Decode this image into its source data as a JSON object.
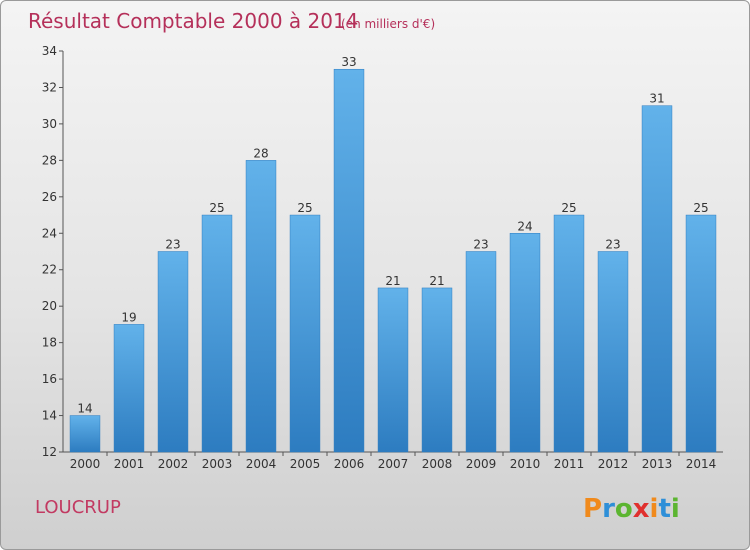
{
  "chart_data": {
    "type": "bar",
    "title": "Résultat Comptable 2000 à 2014",
    "subtitle": "(en milliers d'€)",
    "categories": [
      "2000",
      "2001",
      "2002",
      "2003",
      "2004",
      "2005",
      "2006",
      "2007",
      "2008",
      "2009",
      "2010",
      "2011",
      "2012",
      "2013",
      "2014"
    ],
    "values": [
      14,
      19,
      23,
      25,
      28,
      25,
      33,
      21,
      21,
      23,
      24,
      25,
      23,
      31,
      25
    ],
    "ylim": [
      12,
      34
    ],
    "yticks": [
      12,
      14,
      16,
      18,
      20,
      22,
      24,
      26,
      28,
      30,
      32,
      34
    ],
    "xlabel": "",
    "ylabel": "",
    "bar_color": "#4a9ee0",
    "bar_color_light": "#62b2ea",
    "bar_color_dark": "#2d7cc0"
  },
  "place_name": "LOUCRUP",
  "logo": {
    "text": "Proxiti",
    "letters": [
      "P",
      "r",
      "o",
      "x",
      "i",
      "t",
      "i"
    ],
    "colors": [
      "#f08a1c",
      "#2e8fd8",
      "#5cb531",
      "#e0302e",
      "#f08a1c",
      "#2e8fd8",
      "#5cb531"
    ]
  }
}
